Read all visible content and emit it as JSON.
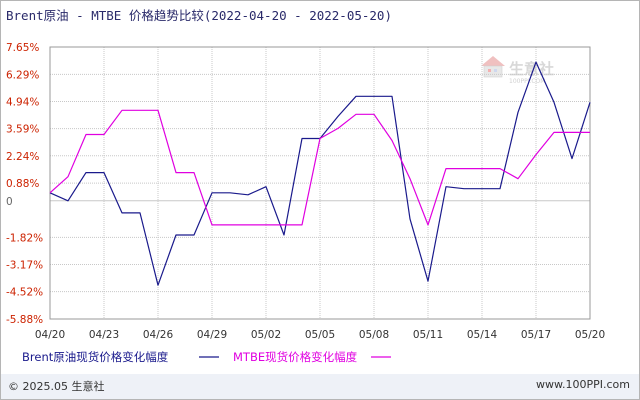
{
  "title": "Brent原油 - MTBE 价格趋势比较(2022-04-20 - 2022-05-20)",
  "watermark": {
    "logo_text": "生意社",
    "sub_text": "100PPI.COM"
  },
  "footer": {
    "copyright": "© 2025.05 生意社",
    "site": "www.100PPI.com"
  },
  "colors": {
    "brent": "#1a1a8c",
    "mtbe": "#e000e0",
    "ytick": "#cc2200",
    "grid": "#c8c8c8"
  },
  "chart_data": {
    "type": "line",
    "title": "Brent原油 - MTBE 价格趋势比较(2022-04-20 - 2022-05-20)",
    "xlabel": "",
    "ylabel": "",
    "ylim": [
      -5.88,
      7.65
    ],
    "grid": true,
    "legend_position": "bottom-left",
    "yticks": [
      7.65,
      6.29,
      4.94,
      3.59,
      2.24,
      0.88,
      0,
      -1.82,
      -3.17,
      -4.52,
      -5.88
    ],
    "ytick_labels": [
      "7.65%",
      "6.29%",
      "4.94%",
      "3.59%",
      "2.24%",
      "0.88%",
      "0",
      "-1.82%",
      "-3.17%",
      "-4.52%",
      "-5.88%"
    ],
    "xtick_labels": [
      "04/20",
      "04/23",
      "04/26",
      "04/29",
      "05/02",
      "05/05",
      "05/08",
      "05/11",
      "05/14",
      "05/17",
      "05/20"
    ],
    "x": [
      "04/20",
      "04/21",
      "04/22",
      "04/23",
      "04/24",
      "04/25",
      "04/26",
      "04/27",
      "04/28",
      "04/29",
      "04/30",
      "05/01",
      "05/02",
      "05/03",
      "05/04",
      "05/05",
      "05/06",
      "05/07",
      "05/08",
      "05/09",
      "05/10",
      "05/11",
      "05/12",
      "05/13",
      "05/14",
      "05/15",
      "05/16",
      "05/17",
      "05/18",
      "05/19",
      "05/20"
    ],
    "series": [
      {
        "name": "Brent原油现货价格变化幅度",
        "values": [
          0.4,
          0.0,
          1.4,
          1.4,
          -0.6,
          -0.6,
          -4.2,
          -1.7,
          -1.7,
          0.4,
          0.4,
          0.3,
          0.7,
          -1.7,
          3.1,
          3.1,
          4.2,
          5.2,
          5.2,
          5.2,
          -0.9,
          -4.0,
          0.7,
          0.6,
          0.6,
          0.6,
          4.4,
          6.9,
          4.9,
          2.1,
          4.9
        ]
      },
      {
        "name": "MTBE现货价格变化幅度",
        "values": [
          0.4,
          1.2,
          3.3,
          3.3,
          4.5,
          4.5,
          4.5,
          1.4,
          1.4,
          -1.2,
          -1.2,
          -1.2,
          -1.2,
          -1.2,
          -1.2,
          3.1,
          3.6,
          4.3,
          4.3,
          3.0,
          1.1,
          -1.2,
          1.6,
          1.6,
          1.6,
          1.6,
          1.1,
          2.3,
          3.4,
          3.4,
          3.4
        ]
      }
    ]
  }
}
